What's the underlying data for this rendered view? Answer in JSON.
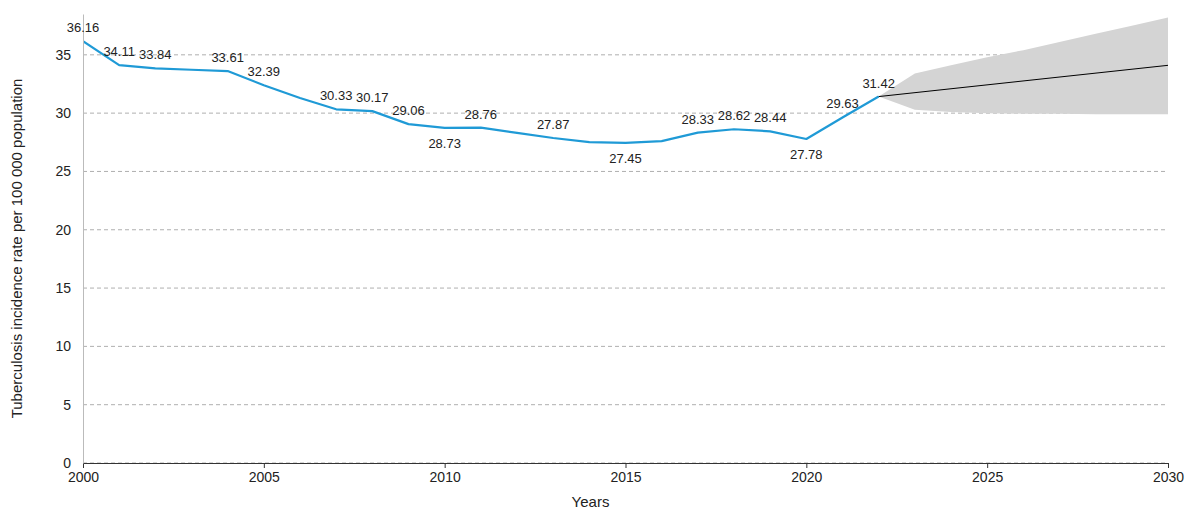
{
  "chart_data": {
    "type": "line",
    "x_label": "Years",
    "y_label": "Tuberculosis incidence rate per 100 000 population",
    "xlim": [
      2000,
      2030
    ],
    "xticks": [
      2000,
      2005,
      2010,
      2015,
      2020,
      2025,
      2030
    ],
    "ylim": [
      0,
      38.5
    ],
    "yticks": [
      0,
      5,
      10,
      15,
      20,
      25,
      30,
      35
    ],
    "grid": true,
    "data_labels": true,
    "series": [
      {
        "color": "#1f9ad6",
        "line_style": "solid",
        "x": [
          2000,
          2001,
          2002,
          2003,
          2004,
          2005,
          2006,
          2007,
          2008,
          2009,
          2010,
          2011,
          2012,
          2013,
          2014,
          2015,
          2016,
          2017,
          2018,
          2019,
          2020,
          2021,
          2022
        ],
        "values": [
          36.16,
          34.11,
          33.84,
          33.72,
          33.61,
          32.39,
          31.3,
          30.33,
          30.17,
          29.06,
          28.73,
          28.76,
          28.3,
          27.87,
          27.52,
          27.45,
          27.6,
          28.33,
          28.62,
          28.44,
          27.78,
          29.63,
          31.42
        ],
        "value_labels": [
          "36.16",
          "34.11",
          "33.84",
          null,
          "33.61",
          "32.39",
          null,
          "30.33",
          "30.17",
          "29.06",
          "28.73",
          "28.76",
          null,
          "27.87",
          null,
          "27.45",
          null,
          "28.33",
          "28.62",
          "28.44",
          "27.78",
          "29.63",
          "31.42"
        ]
      },
      {
        "color": "#000000",
        "line_style": "solid",
        "x": [
          2022,
          2030
        ],
        "values": [
          31.42,
          34.1
        ]
      }
    ],
    "band": {
      "color": "#d4d4d4",
      "x": [
        2022,
        2023,
        2024,
        2025,
        2026,
        2027,
        2028,
        2029,
        2030
      ],
      "lower": [
        31.42,
        30.3,
        30.1,
        30.0,
        29.95,
        29.95,
        29.9,
        29.9,
        29.9
      ],
      "upper": [
        31.42,
        33.4,
        34.1,
        34.8,
        35.4,
        36.1,
        36.8,
        37.5,
        38.2
      ]
    }
  }
}
